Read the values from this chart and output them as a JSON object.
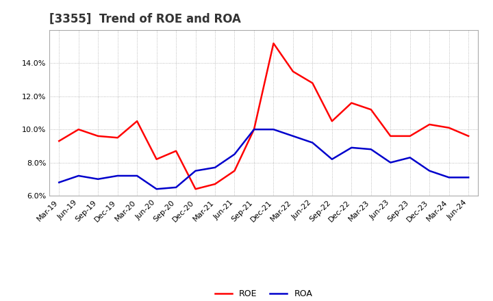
{
  "title": "[3355]  Trend of ROE and ROA",
  "labels": [
    "Mar-19",
    "Jun-19",
    "Sep-19",
    "Dec-19",
    "Mar-20",
    "Jun-20",
    "Sep-20",
    "Dec-20",
    "Mar-21",
    "Jun-21",
    "Sep-21",
    "Dec-21",
    "Mar-22",
    "Jun-22",
    "Sep-22",
    "Dec-22",
    "Mar-23",
    "Jun-23",
    "Sep-23",
    "Dec-23",
    "Mar-24",
    "Jun-24"
  ],
  "ROE": [
    9.3,
    10.0,
    9.6,
    9.5,
    10.5,
    8.2,
    8.7,
    6.4,
    6.7,
    7.5,
    10.0,
    15.2,
    13.5,
    12.8,
    10.5,
    11.6,
    11.2,
    9.6,
    9.6,
    10.3,
    10.1,
    9.6
  ],
  "ROA": [
    6.8,
    7.2,
    7.0,
    7.2,
    7.2,
    6.4,
    6.5,
    7.5,
    7.7,
    8.5,
    10.0,
    10.0,
    9.6,
    9.2,
    8.2,
    8.9,
    8.8,
    8.0,
    8.3,
    7.5,
    7.1,
    7.1
  ],
  "roe_color": "#ff0000",
  "roa_color": "#0000cc",
  "ylim": [
    6.0,
    16.0
  ],
  "yticks": [
    6.0,
    8.0,
    10.0,
    12.0,
    14.0
  ],
  "background_color": "#ffffff",
  "grid_color": "#aaaaaa",
  "border_color": "#aaaaaa",
  "line_width": 1.8,
  "title_fontsize": 12,
  "tick_fontsize": 8,
  "legend_fontsize": 9
}
